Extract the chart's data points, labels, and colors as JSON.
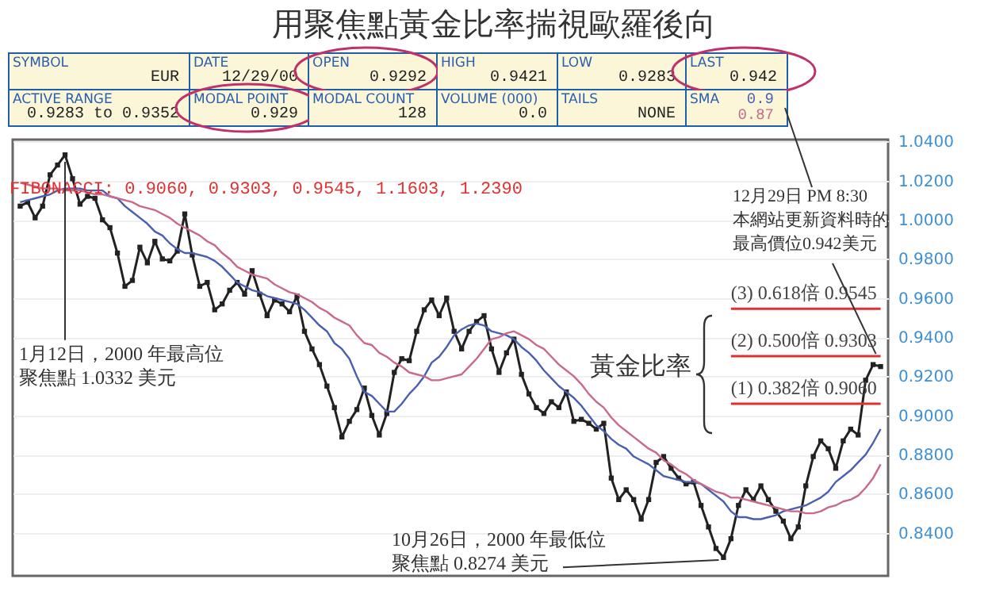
{
  "chart_data": [
    {
      "type": "other",
      "annotations": [
        "SYMBOL",
        "EUR",
        "DATE",
        "12/29/00",
        "OPEN",
        "0.9292",
        "HIGH",
        "0.9421",
        "LOW",
        "0.9283",
        "LAST",
        "0.942",
        "ACTIVE RANGE",
        "0.9283 to 0.9352",
        "MODAL POINT",
        "0.929",
        "MODAL COUNT",
        "128",
        "VOLUME (000)",
        "0.0",
        "TAILS",
        "NONE",
        "SMA",
        "0.9",
        "0.87"
      ]
    },
    {
      "type": "line",
      "title": "用聚焦點黃金比率揣視歐羅後向",
      "categories": [
        null,
        null,
        null,
        null,
        null,
        null,
        null,
        null,
        null,
        null,
        null,
        null,
        null,
        null,
        null,
        null,
        null,
        null,
        null,
        null,
        null,
        null,
        null,
        null,
        null,
        null,
        null,
        null,
        null,
        null,
        null,
        null,
        null,
        null,
        null,
        null,
        null,
        null,
        null,
        null,
        null,
        null,
        null,
        null,
        null,
        null,
        null,
        null,
        null,
        null,
        null,
        null,
        null,
        null,
        null,
        null,
        null,
        null,
        null,
        null,
        null,
        null,
        null,
        null,
        null,
        null,
        null,
        null,
        null,
        null,
        null,
        null,
        null,
        null,
        null,
        null,
        null,
        null,
        null,
        null,
        null,
        null,
        null,
        null,
        null,
        null,
        null,
        null,
        null,
        null,
        null,
        null,
        null,
        null,
        null,
        null,
        null,
        null,
        null,
        null,
        null,
        null,
        null,
        null,
        null,
        null,
        null,
        null,
        null,
        null,
        null,
        null,
        null,
        null,
        null,
        null
      ],
      "series": [
        {
          "color": "#222222",
          "marker": "square",
          "values": [
            1.007,
            1.009,
            1.001,
            1.007,
            1.023,
            1.028,
            1.0332,
            1.021,
            1.008,
            1.012,
            1.011,
            1.0,
            0.996,
            0.983,
            0.966,
            0.969,
            0.986,
            0.978,
            0.989,
            0.98,
            0.979,
            0.984,
            1.003,
            0.982,
            0.966,
            0.968,
            0.954,
            0.957,
            0.964,
            0.968,
            0.962,
            0.974,
            0.962,
            0.951,
            0.959,
            0.957,
            0.953,
            0.961,
            0.943,
            0.934,
            0.926,
            0.915,
            0.904,
            0.889,
            0.897,
            0.903,
            0.914,
            0.9,
            0.89,
            0.901,
            0.922,
            0.929,
            0.928,
            0.943,
            0.954,
            0.959,
            0.951,
            0.96,
            0.943,
            0.934,
            0.943,
            0.948,
            0.951,
            0.934,
            0.922,
            0.932,
            0.939,
            0.921,
            0.911,
            0.904,
            0.901,
            0.907,
            0.904,
            0.912,
            0.897,
            0.898,
            0.896,
            0.893,
            0.896,
            0.868,
            0.857,
            0.862,
            0.857,
            0.847,
            0.857,
            0.876,
            0.879,
            0.873,
            0.868,
            0.865,
            0.866,
            0.854,
            0.843,
            0.832,
            0.8274,
            0.837,
            0.854,
            0.862,
            0.857,
            0.864,
            0.857,
            0.851,
            0.846,
            0.837,
            0.843,
            0.864,
            0.879,
            0.887,
            0.883,
            0.873,
            0.887,
            0.893,
            0.89,
            0.918,
            0.926,
            0.925
          ]
        },
        {
          "color": "#4a5fb0",
          "values": [
            1.009,
            1.01,
            1.011,
            1.012,
            1.013,
            1.015,
            1.016,
            1.016,
            1.016,
            1.015,
            1.015,
            1.015,
            1.012,
            1.011,
            1.007,
            1.004,
            1.001,
            0.998,
            0.994,
            0.992,
            0.988,
            0.985,
            0.983,
            0.983,
            0.982,
            0.981,
            0.979,
            0.976,
            0.972,
            0.968,
            0.966,
            0.964,
            0.963,
            0.961,
            0.96,
            0.959,
            0.958,
            0.957,
            0.954,
            0.95,
            0.946,
            0.943,
            0.937,
            0.934,
            0.929,
            0.92,
            0.912,
            0.91,
            0.906,
            0.902,
            0.902,
            0.906,
            0.911,
            0.915,
            0.92,
            0.927,
            0.93,
            0.935,
            0.941,
            0.944,
            0.946,
            0.947,
            0.946,
            0.943,
            0.942,
            0.941,
            0.939,
            0.935,
            0.932,
            0.928,
            0.923,
            0.919,
            0.915,
            0.912,
            0.909,
            0.905,
            0.9,
            0.895,
            0.892,
            0.888,
            0.885,
            0.883,
            0.879,
            0.877,
            0.875,
            0.872,
            0.869,
            0.868,
            0.867,
            0.866,
            0.866,
            0.865,
            0.862,
            0.859,
            0.856,
            0.851,
            0.848,
            0.848,
            0.847,
            0.847,
            0.848,
            0.849,
            0.851,
            0.852,
            0.853,
            0.854,
            0.856,
            0.858,
            0.861,
            0.866,
            0.869,
            0.872,
            0.876,
            0.88,
            0.886,
            0.893
          ]
        },
        {
          "color": "#c86a8a",
          "values": [
            1.019,
            1.018,
            1.017,
            1.016,
            1.016,
            1.016,
            1.015,
            1.015,
            1.015,
            1.014,
            1.013,
            1.013,
            1.012,
            1.011,
            1.01,
            1.009,
            1.007,
            1.006,
            1.005,
            1.003,
            1.001,
            0.998,
            0.996,
            0.994,
            0.992,
            0.989,
            0.987,
            0.983,
            0.98,
            0.976,
            0.974,
            0.972,
            0.971,
            0.97,
            0.967,
            0.965,
            0.963,
            0.962,
            0.96,
            0.958,
            0.955,
            0.953,
            0.95,
            0.948,
            0.946,
            0.941,
            0.937,
            0.936,
            0.932,
            0.93,
            0.927,
            0.925,
            0.922,
            0.921,
            0.92,
            0.918,
            0.918,
            0.919,
            0.92,
            0.921,
            0.925,
            0.929,
            0.934,
            0.939,
            0.94,
            0.942,
            0.943,
            0.941,
            0.939,
            0.936,
            0.934,
            0.93,
            0.926,
            0.923,
            0.92,
            0.916,
            0.911,
            0.907,
            0.904,
            0.899,
            0.895,
            0.892,
            0.889,
            0.886,
            0.883,
            0.881,
            0.877,
            0.875,
            0.872,
            0.87,
            0.867,
            0.865,
            0.863,
            0.861,
            0.86,
            0.858,
            0.858,
            0.857,
            0.856,
            0.855,
            0.854,
            0.853,
            0.852,
            0.851,
            0.851,
            0.85,
            0.85,
            0.851,
            0.853,
            0.854,
            0.856,
            0.857,
            0.859,
            0.863,
            0.868,
            0.875
          ]
        }
      ],
      "ylim": [
        0.818,
        1.041
      ],
      "yticks": [
        {
          "value": 0.84,
          "label": "0.8400"
        },
        {
          "value": 0.86,
          "label": "0.8600"
        },
        {
          "value": 0.88,
          "label": "0.8800"
        },
        {
          "value": 0.9,
          "label": "0.9000"
        },
        {
          "value": 0.92,
          "label": "0.9200"
        },
        {
          "value": 0.94,
          "label": "0.9400"
        },
        {
          "value": 0.96,
          "label": "0.9600"
        },
        {
          "value": 0.98,
          "label": "0.9800"
        },
        {
          "value": 1.0,
          "label": "1.0000"
        },
        {
          "value": 1.02,
          "label": "1.0200"
        },
        {
          "value": 1.04,
          "label": "1.0400"
        }
      ],
      "ref_lines": [
        {
          "axis": "y",
          "value": 0.9545,
          "label": "(3) 0.618倍    0.9545",
          "color": "#e03030"
        },
        {
          "axis": "y",
          "value": 0.9303,
          "label": "(2) 0.500倍    0.9303",
          "color": "#e03030"
        },
        {
          "axis": "y",
          "value": 0.906,
          "label": "(1) 0.382倍    0.9060",
          "color": "#e03030"
        }
      ],
      "annotations": [
        "FIBONACCI: 0.9060, 0.9303, 0.9545, 1.1603, 1.2390",
        "1月12日，2000 年最高位聚焦點 1.0332 美元",
        "10月26日，2000 年最低位聚焦點 0.8274 美元",
        "12月29日 PM 8:30本網站更新資料時的最高價位0.942美元",
        "黃金比率"
      ],
      "grid": "y",
      "tick_labels": "y"
    }
  ]
}
